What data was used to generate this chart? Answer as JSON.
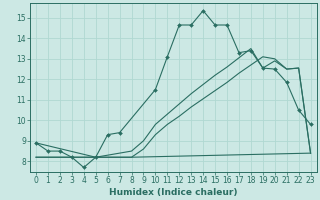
{
  "title": "",
  "xlabel": "Humidex (Indice chaleur)",
  "bg_color": "#cce8e4",
  "grid_color": "#b0d8d2",
  "line_color": "#2a6e62",
  "marker_color": "#2a6e62",
  "xlim": [
    -0.5,
    23.5
  ],
  "ylim": [
    7.5,
    15.7
  ],
  "xticks": [
    0,
    1,
    2,
    3,
    4,
    5,
    6,
    7,
    8,
    9,
    10,
    11,
    12,
    13,
    14,
    15,
    16,
    17,
    18,
    19,
    20,
    21,
    22,
    23
  ],
  "yticks": [
    8,
    9,
    10,
    11,
    12,
    13,
    14,
    15
  ],
  "curve1_x": [
    0,
    1,
    2,
    3,
    4,
    5,
    6,
    7,
    10,
    11,
    12,
    13,
    14,
    15,
    16,
    17,
    18,
    19,
    20,
    21,
    22,
    23
  ],
  "curve1_y": [
    8.9,
    8.5,
    8.5,
    8.2,
    7.7,
    8.2,
    9.3,
    9.4,
    11.5,
    13.1,
    14.65,
    14.65,
    15.35,
    14.65,
    14.65,
    13.3,
    13.4,
    12.55,
    12.5,
    11.85,
    10.5,
    9.8
  ],
  "curve2_x": [
    0,
    5,
    8,
    23
  ],
  "curve2_y": [
    8.2,
    8.2,
    8.2,
    8.4
  ],
  "curve3_x": [
    0,
    5,
    8,
    9,
    10,
    11,
    12,
    13,
    14,
    15,
    16,
    17,
    18,
    19,
    20,
    21,
    22,
    23
  ],
  "curve3_y": [
    8.2,
    8.2,
    8.2,
    8.6,
    9.3,
    9.8,
    10.2,
    10.65,
    11.05,
    11.45,
    11.85,
    12.3,
    12.7,
    13.1,
    13.0,
    12.5,
    12.55,
    8.4
  ],
  "curve4_x": [
    0,
    5,
    8,
    9,
    10,
    11,
    12,
    13,
    14,
    15,
    16,
    17,
    18,
    19,
    20,
    21,
    22,
    23
  ],
  "curve4_y": [
    8.9,
    8.2,
    8.5,
    9.0,
    9.8,
    10.3,
    10.8,
    11.3,
    11.75,
    12.2,
    12.6,
    13.05,
    13.5,
    12.55,
    12.9,
    12.5,
    12.55,
    8.4
  ]
}
